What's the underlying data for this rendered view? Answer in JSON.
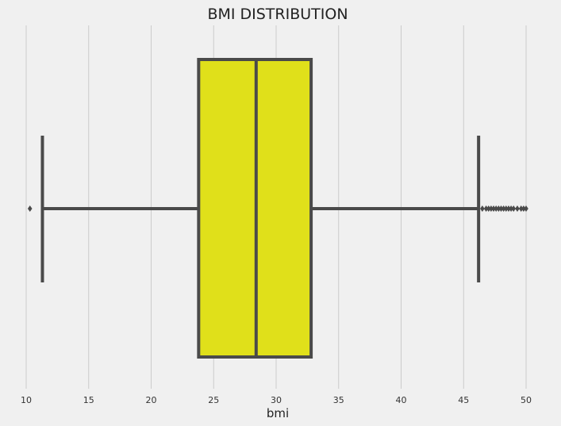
{
  "chart_data": {
    "type": "boxplot",
    "orientation": "horizontal",
    "title": "BMI DISTRIBUTION",
    "xlabel": "bmi",
    "ylabel": "",
    "xlim": [
      9.9,
      51.0
    ],
    "xticks": [
      10,
      15,
      20,
      25,
      30,
      35,
      40,
      45,
      50
    ],
    "grid": "vertical",
    "box": {
      "whisker_low": 11.3,
      "q1": 23.8,
      "median": 28.4,
      "q3": 32.8,
      "whisker_high": 46.2
    },
    "outliers": [
      10.3,
      46.5,
      46.8,
      47.0,
      47.2,
      47.4,
      47.6,
      47.8,
      48.0,
      48.2,
      48.4,
      48.6,
      48.8,
      49.0,
      49.3,
      49.6,
      49.8,
      50.0
    ],
    "colors": {
      "background": "#f0f0f0",
      "grid": "#cbcbcb",
      "box_fill": "#e0e01a",
      "line": "#4a4a4a"
    }
  }
}
